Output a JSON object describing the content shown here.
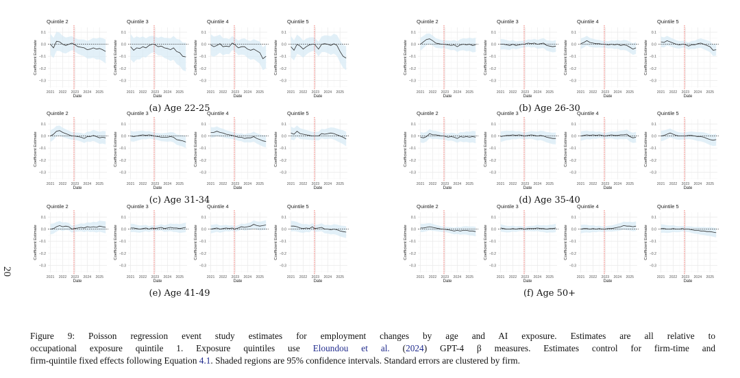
{
  "page_number": "20",
  "figure": {
    "caption_lines": [
      {
        "parts": [
          {
            "t": "Figure 9:  Poisson regression event study estimates for employment changes by age and AI exposure.  Estimates are all relative to"
          }
        ]
      },
      {
        "parts": [
          {
            "t": "occupational exposure quintile 1.  Exposure quintiles use "
          },
          {
            "t": "Eloundou et al.",
            "link": true
          },
          {
            "t": " ("
          },
          {
            "t": "2024",
            "link": true
          },
          {
            "t": ") GPT-4 β measures.  Estimates control for firm-time and"
          }
        ]
      },
      {
        "parts": [
          {
            "t": "firm-quintile fixed effects following Equation "
          },
          {
            "t": "4.1",
            "link": true
          },
          {
            "t": ".  Shaded regions are 95% confidence intervals.  Standard errors are clustered by firm."
          }
        ]
      }
    ],
    "link_color": "#1f2a8c"
  },
  "chart_data": {
    "type": "line",
    "common": {
      "xlabel": "Date",
      "ylabel": "Coefficient Estimate",
      "x_ticks": [
        "2021",
        "2022",
        "2023",
        "2024",
        "2025"
      ],
      "y_ticks": [
        "0.1",
        "0.0",
        "-0.1",
        "-0.2",
        "-0.3"
      ],
      "y_tick_values": [
        0.1,
        0.0,
        -0.1,
        -0.2,
        -0.3
      ],
      "xlim": [
        2020.8,
        2025.6
      ],
      "ylim": [
        -0.36,
        0.14
      ],
      "event_line_x": 2022.92,
      "event_line_color": "#e8453c",
      "zero_line": "dashed",
      "line_color": "#2b2b2b",
      "ci_color": "#d6e9f5",
      "grid": true,
      "x": [
        2021.0,
        2021.25,
        2021.5,
        2021.75,
        2022.0,
        2022.25,
        2022.5,
        2022.75,
        2022.92,
        2023.25,
        2023.5,
        2023.75,
        2024.0,
        2024.25,
        2024.5,
        2024.75,
        2025.0,
        2025.25,
        2025.5
      ]
    },
    "groups": [
      {
        "label": "(a) Age 22-25",
        "panels": [
          {
            "title": "Quintile 2",
            "y": [
              0.0,
              -0.03,
              0.025,
              0.02,
              0.0,
              -0.01,
              0.0,
              0.01,
              0.0,
              -0.02,
              -0.025,
              -0.03,
              -0.045,
              -0.04,
              -0.03,
              -0.04,
              -0.035,
              -0.045,
              -0.06
            ],
            "ci": 0.1
          },
          {
            "title": "Quintile 3",
            "y": [
              -0.02,
              -0.05,
              -0.03,
              -0.035,
              -0.02,
              -0.03,
              -0.01,
              0.0,
              0.0,
              -0.02,
              -0.015,
              -0.03,
              -0.035,
              -0.045,
              -0.03,
              -0.06,
              -0.07,
              -0.1,
              -0.105
            ],
            "ci": 0.12
          },
          {
            "title": "Quintile 4",
            "y": [
              -0.005,
              -0.02,
              -0.01,
              0.005,
              -0.02,
              -0.015,
              -0.02,
              0.01,
              0.0,
              -0.03,
              -0.02,
              -0.02,
              -0.04,
              -0.05,
              -0.04,
              -0.055,
              -0.07,
              -0.12,
              -0.1
            ],
            "ci": 0.1
          },
          {
            "title": "Quintile 5",
            "y": [
              -0.02,
              -0.05,
              0.0,
              -0.015,
              -0.04,
              -0.02,
              -0.005,
              0.0,
              0.0,
              -0.04,
              0.0,
              0.005,
              0.0,
              -0.01,
              0.005,
              -0.01,
              -0.06,
              -0.1,
              -0.115
            ],
            "ci": 0.1
          }
        ]
      },
      {
        "label": "(b) Age 26-30",
        "panels": [
          {
            "title": "Quintile 2",
            "y": [
              0.0,
              0.02,
              0.04,
              0.045,
              0.03,
              0.01,
              0.005,
              0.0,
              0.0,
              -0.005,
              -0.01,
              -0.005,
              -0.02,
              -0.005,
              0.0,
              -0.005,
              0.0,
              -0.01,
              -0.005
            ],
            "ci": 0.06
          },
          {
            "title": "Quintile 3",
            "y": [
              0.0,
              0.0,
              -0.005,
              -0.01,
              0.0,
              -0.01,
              -0.005,
              0.0,
              0.0,
              0.01,
              0.005,
              0.01,
              0.0,
              0.005,
              0.01,
              -0.01,
              -0.015,
              -0.02,
              -0.015
            ],
            "ci": 0.05
          },
          {
            "title": "Quintile 4",
            "y": [
              0.005,
              0.015,
              0.03,
              0.015,
              0.01,
              0.005,
              0.005,
              0.0,
              0.0,
              -0.005,
              0.0,
              -0.005,
              0.0,
              -0.01,
              -0.005,
              -0.01,
              -0.025,
              -0.04,
              -0.03
            ],
            "ci": 0.05
          },
          {
            "title": "Quintile 5",
            "y": [
              0.02,
              0.015,
              0.03,
              0.02,
              0.01,
              0.0,
              -0.005,
              0.0,
              0.0,
              -0.015,
              -0.005,
              -0.005,
              0.005,
              0.01,
              0.0,
              -0.01,
              -0.02,
              -0.05,
              -0.045
            ],
            "ci": 0.05
          }
        ]
      },
      {
        "label": "(c) Age 31-34",
        "panels": [
          {
            "title": "Quintile 2",
            "y": [
              0.0,
              0.015,
              0.04,
              0.045,
              0.03,
              0.02,
              0.01,
              0.0,
              0.0,
              -0.005,
              -0.01,
              -0.02,
              -0.005,
              -0.005,
              0.005,
              -0.005,
              -0.015,
              -0.01,
              -0.015
            ],
            "ci": 0.055
          },
          {
            "title": "Quintile 3",
            "y": [
              0.0,
              -0.005,
              0.0,
              0.005,
              0.01,
              0.005,
              0.01,
              0.005,
              0.0,
              -0.005,
              -0.01,
              -0.01,
              -0.01,
              -0.005,
              -0.01,
              -0.03,
              -0.035,
              -0.04,
              -0.05
            ],
            "ci": 0.05
          },
          {
            "title": "Quintile 4",
            "y": [
              0.03,
              0.03,
              0.04,
              0.03,
              0.025,
              0.015,
              0.01,
              0.005,
              0.0,
              -0.01,
              -0.01,
              -0.02,
              -0.015,
              -0.015,
              -0.005,
              -0.02,
              -0.03,
              -0.04,
              -0.045
            ],
            "ci": 0.05
          },
          {
            "title": "Quintile 5",
            "y": [
              0.025,
              0.015,
              0.04,
              0.02,
              0.015,
              0.01,
              0.005,
              0.0,
              0.0,
              0.0,
              0.02,
              0.015,
              0.02,
              0.025,
              0.02,
              0.01,
              0.0,
              -0.01,
              -0.025
            ],
            "ci": 0.06
          }
        ]
      },
      {
        "label": "(d) Age 35-40",
        "panels": [
          {
            "title": "Quintile 2",
            "y": [
              -0.01,
              -0.015,
              -0.005,
              0.02,
              0.01,
              0.01,
              0.005,
              0.0,
              0.0,
              -0.01,
              -0.005,
              -0.01,
              -0.02,
              -0.005,
              -0.01,
              -0.005,
              -0.01,
              -0.005,
              -0.01
            ],
            "ci": 0.05
          },
          {
            "title": "Quintile 3",
            "y": [
              -0.005,
              0.0,
              0.005,
              0.005,
              0.01,
              0.005,
              0.01,
              0.005,
              0.0,
              0.005,
              0.01,
              0.005,
              0.0,
              0.005,
              0.0,
              -0.01,
              -0.015,
              -0.02,
              -0.02
            ],
            "ci": 0.05
          },
          {
            "title": "Quintile 4",
            "y": [
              0.0,
              0.005,
              0.01,
              0.005,
              0.01,
              0.005,
              0.01,
              0.005,
              0.0,
              0.005,
              0.01,
              0.005,
              0.005,
              0.01,
              0.01,
              0.015,
              -0.005,
              -0.015,
              -0.01
            ],
            "ci": 0.045
          },
          {
            "title": "Quintile 5",
            "y": [
              0.0,
              0.005,
              0.015,
              0.025,
              0.015,
              0.005,
              0.0,
              0.0,
              0.0,
              0.005,
              0.005,
              0.0,
              -0.005,
              -0.005,
              -0.01,
              -0.02,
              -0.03,
              -0.035,
              -0.03
            ],
            "ci": 0.05
          }
        ]
      },
      {
        "label": "(e) Age 41-49",
        "panels": [
          {
            "title": "Quintile 2",
            "y": [
              0.0,
              0.005,
              0.02,
              0.03,
              0.02,
              0.025,
              0.02,
              0.0,
              0.005,
              0.01,
              0.015,
              0.01,
              0.02,
              0.015,
              0.02,
              0.015,
              0.025,
              0.02,
              0.015
            ],
            "ci": 0.05
          },
          {
            "title": "Quintile 3",
            "y": [
              0.01,
              0.01,
              0.005,
              0.0,
              0.005,
              0.01,
              0.0,
              0.01,
              0.005,
              0.01,
              0.015,
              0.005,
              0.01,
              0.015,
              0.01,
              0.01,
              0.005,
              0.01,
              0.015
            ],
            "ci": 0.04
          },
          {
            "title": "Quintile 4",
            "y": [
              0.0,
              0.005,
              0.01,
              0.0,
              0.005,
              0.01,
              0.005,
              0.01,
              0.0,
              0.01,
              0.02,
              0.015,
              0.02,
              0.025,
              0.04,
              0.03,
              0.025,
              0.03,
              0.035
            ],
            "ci": 0.04
          },
          {
            "title": "Quintile 5",
            "y": [
              0.025,
              0.025,
              0.02,
              0.01,
              0.005,
              0.01,
              0.005,
              0.02,
              0.005,
              0.01,
              0.015,
              0.0,
              0.0,
              -0.005,
              0.0,
              -0.005,
              -0.015,
              -0.02,
              -0.025
            ],
            "ci": 0.05
          }
        ]
      },
      {
        "label": "(f) Age 50+",
        "panels": [
          {
            "title": "Quintile 2",
            "y": [
              0.01,
              0.01,
              0.015,
              0.02,
              0.015,
              0.01,
              0.005,
              0.0,
              0.0,
              -0.005,
              -0.01,
              -0.015,
              -0.01,
              -0.015,
              -0.01,
              -0.01,
              -0.015,
              -0.015,
              -0.02
            ],
            "ci": 0.04
          },
          {
            "title": "Quintile 3",
            "y": [
              0.01,
              0.005,
              0.0,
              0.0,
              0.005,
              0.0,
              0.005,
              0.005,
              0.0,
              0.005,
              0.005,
              0.005,
              0.01,
              0.005,
              0.005,
              0.0,
              0.005,
              0.005,
              0.01
            ],
            "ci": 0.035
          },
          {
            "title": "Quintile 4",
            "y": [
              0.0,
              0.005,
              0.005,
              0.0,
              0.005,
              0.0,
              0.005,
              0.0,
              0.0,
              0.005,
              0.005,
              0.01,
              0.015,
              0.02,
              0.03,
              0.025,
              0.025,
              0.02,
              0.025
            ],
            "ci": 0.04
          },
          {
            "title": "Quintile 5",
            "y": [
              0.005,
              0.005,
              0.0,
              0.0,
              0.005,
              0.0,
              0.0,
              0.005,
              0.0,
              0.0,
              -0.005,
              -0.01,
              -0.01,
              -0.015,
              -0.015,
              -0.02,
              -0.02,
              -0.025,
              -0.03
            ],
            "ci": 0.04
          }
        ]
      }
    ]
  }
}
